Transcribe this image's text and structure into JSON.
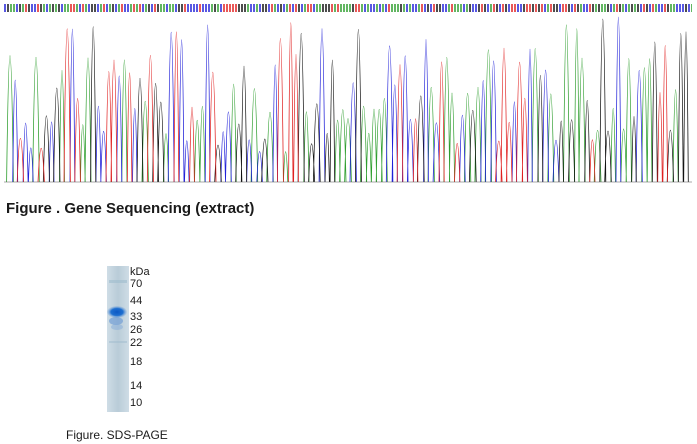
{
  "sequencing": {
    "caption": "Figure . Gene Sequencing (extract)",
    "trace_colors": {
      "A": "#2e9e2e",
      "C": "#2020d8",
      "G": "#111111",
      "T": "#e02020"
    }
  },
  "sds_page": {
    "unit_label": "kDa",
    "markers": [
      "70",
      "44",
      "33",
      "26",
      "22",
      "18",
      "14",
      "10"
    ],
    "caption": "Figure. SDS-PAGE",
    "band_color": "#1e6fd0"
  }
}
